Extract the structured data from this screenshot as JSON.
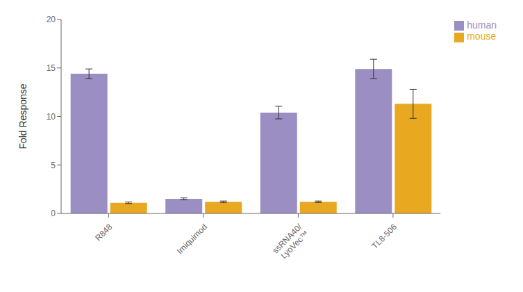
{
  "chart_data": {
    "type": "bar",
    "categories": [
      "R848",
      "Imiquimod",
      "ssRNA40/\nLyoVec™",
      "TL8-506"
    ],
    "series": [
      {
        "name": "human",
        "color": "#9b8ec2",
        "values": [
          14.4,
          1.5,
          10.4,
          14.9
        ],
        "errors": [
          0.5,
          0.1,
          0.65,
          1.0
        ]
      },
      {
        "name": "mouse",
        "color": "#e8a820",
        "values": [
          1.1,
          1.2,
          1.2,
          11.3
        ],
        "errors": [
          0.08,
          0.08,
          0.08,
          1.5
        ]
      }
    ],
    "ylabel": "Fold Response",
    "ylim": [
      0,
      20
    ],
    "yticks": [
      0,
      5,
      10,
      15,
      20
    ],
    "legend": "upper right",
    "grid": false
  }
}
